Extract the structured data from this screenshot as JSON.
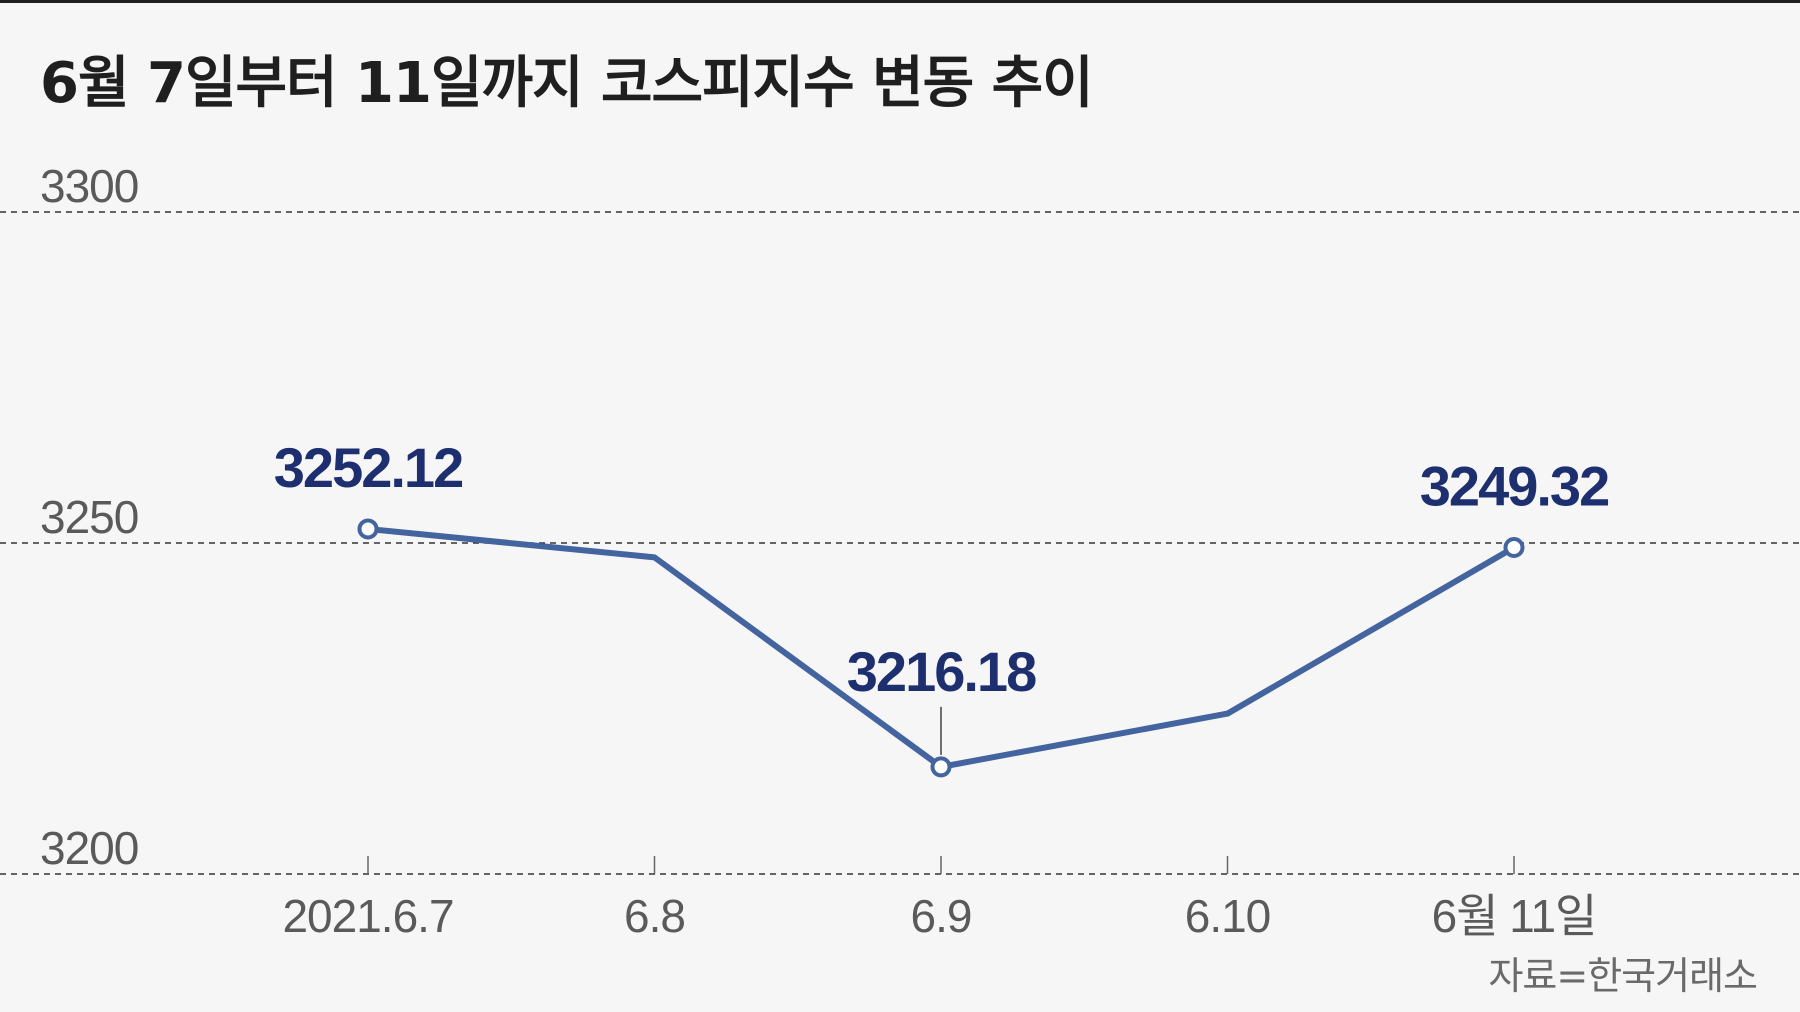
{
  "title": "6월 7일부터 11일까지 코스피지수 변동 추이",
  "source": "자료=한국거래소",
  "colors": {
    "line": "#43649e",
    "label": "#1d2f6f",
    "background": "#f6f6f6"
  },
  "chart_data": {
    "type": "line",
    "title": "6월 7일부터 11일까지 코스피지수 변동 추이",
    "categories": [
      "2021.6.7",
      "6.8",
      "6.9",
      "6.10",
      "6월 11일"
    ],
    "values": [
      3252.12,
      3247.83,
      3216.18,
      3224.23,
      3249.32
    ],
    "data_labels": [
      {
        "index": 0,
        "text": "3252.12"
      },
      {
        "index": 2,
        "text": "3216.18"
      },
      {
        "index": 4,
        "text": "3249.32"
      }
    ],
    "markers_at": [
      0,
      2,
      4
    ],
    "yticks": [
      "3200",
      "3250",
      "3300"
    ],
    "ylim": [
      3200,
      3300
    ],
    "xlabel": "",
    "ylabel": "",
    "grid": true,
    "legend": "none"
  }
}
